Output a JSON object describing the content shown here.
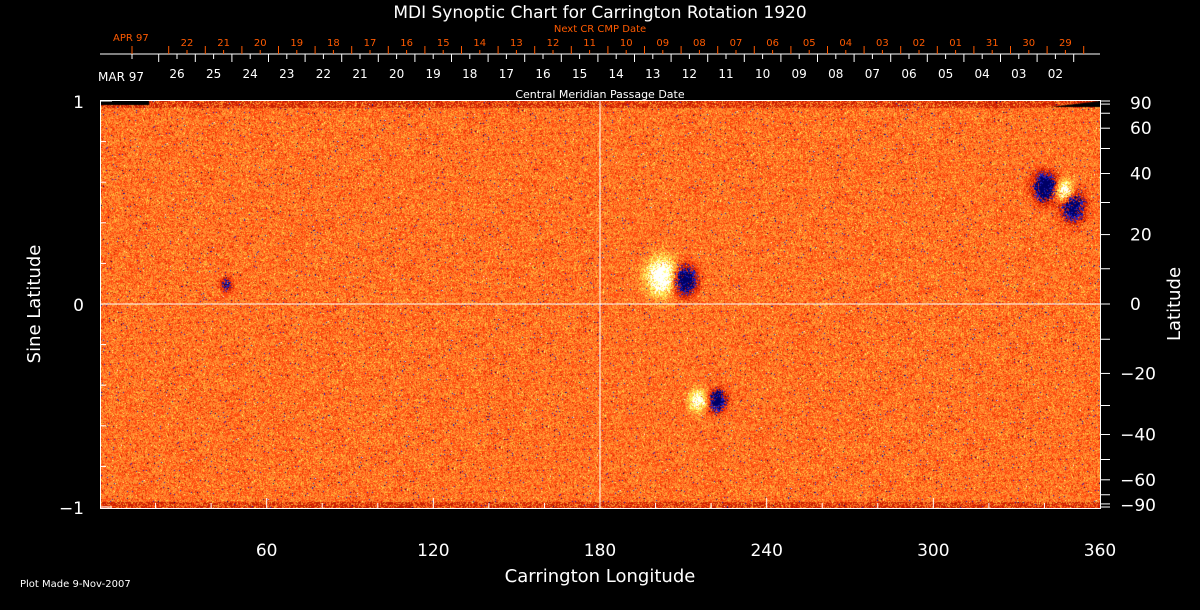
{
  "chart_data": {
    "type": "heatmap",
    "title": "MDI Synoptic Chart for Carrington Rotation 1920",
    "xlabel": "Carrington Longitude",
    "ylabel": "Sine Latitude",
    "y2label": "Latitude",
    "xlim": [
      0,
      360
    ],
    "ylim": [
      -1,
      1
    ],
    "xticks": [
      60,
      120,
      180,
      240,
      300,
      360
    ],
    "yticks": [
      1,
      0,
      -1
    ],
    "yticklabels": [
      "1",
      "0",
      "−1"
    ],
    "y2ticks": [
      90,
      60,
      40,
      20,
      0,
      -20,
      -40,
      -60,
      -90
    ],
    "y2ticklabels": [
      "90",
      "60",
      "40",
      "20",
      "0",
      "−20",
      "−40",
      "−60",
      "−90"
    ],
    "grid": "center lines at longitude 180 and latitude 0",
    "colormap": [
      "#000066",
      "#2020c0",
      "#c81e00",
      "#ff4a10",
      "#ff8c30",
      "#ffd040",
      "#ffff80",
      "#ffffff"
    ],
    "top_axis_cmp": {
      "label": "Central Meridian Passage Date",
      "month_label": "MAR 97",
      "dates": [
        "26",
        "25",
        "24",
        "23",
        "22",
        "21",
        "20",
        "19",
        "18",
        "17",
        "16",
        "15",
        "14",
        "13",
        "12",
        "11",
        "10",
        "09",
        "08",
        "07",
        "06",
        "05",
        "04",
        "03",
        "02"
      ]
    },
    "top_axis_next_cr": {
      "label": "Next CR CMP Date",
      "month_label": "APR 97",
      "dates": [
        "22",
        "21",
        "20",
        "19",
        "18",
        "17",
        "16",
        "15",
        "14",
        "13",
        "12",
        "11",
        "10",
        "09",
        "08",
        "07",
        "06",
        "05",
        "04",
        "03",
        "02",
        "01",
        "31",
        "30",
        "29"
      ],
      "color": "#ff5a00"
    }
  },
  "footer": {
    "plot_made": "Plot Made  9-Nov-2007"
  }
}
